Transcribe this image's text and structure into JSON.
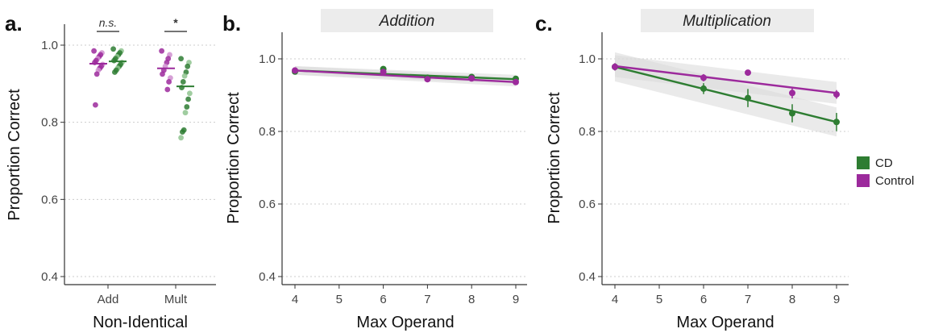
{
  "colors": {
    "cd": "#2e7d32",
    "control": "#9c2a9c",
    "cd_light": "#8fc48f",
    "control_light": "#cf8fcf",
    "band": "#d8d8d8",
    "strip_bg": "#ececec"
  },
  "chart_data": [
    {
      "type": "scatter",
      "panel_label": "a.",
      "title": "",
      "xlabel": "Non-Identical",
      "ylabel": "Proportion Correct",
      "ylim": [
        0.4,
        1.0
      ],
      "yticks": [
        "0.4",
        "0.6",
        "0.8",
        "1.0"
      ],
      "categories": [
        "Add",
        "Mult"
      ],
      "grid": true,
      "series": [
        {
          "name": "Control",
          "category": "Add",
          "mean": 0.952,
          "points": [
            0.985,
            0.98,
            0.975,
            0.97,
            0.965,
            0.96,
            0.955,
            0.95,
            0.945,
            0.94,
            0.935,
            0.925,
            0.845
          ]
        },
        {
          "name": "CD",
          "category": "Add",
          "mean": 0.958,
          "points": [
            0.99,
            0.985,
            0.98,
            0.975,
            0.97,
            0.965,
            0.96,
            0.955,
            0.95,
            0.945,
            0.94,
            0.935,
            0.93
          ]
        },
        {
          "name": "Control",
          "category": "Mult",
          "mean": 0.94,
          "points": [
            0.985,
            0.975,
            0.965,
            0.955,
            0.945,
            0.935,
            0.925,
            0.915,
            0.905,
            0.885
          ]
        },
        {
          "name": "CD",
          "category": "Mult",
          "mean": 0.893,
          "points": [
            0.965,
            0.955,
            0.945,
            0.93,
            0.92,
            0.905,
            0.89,
            0.875,
            0.86,
            0.84,
            0.825,
            0.78,
            0.775,
            0.76
          ]
        }
      ],
      "annotations": [
        {
          "text": "n.s.",
          "category": "Add",
          "style": "italic"
        },
        {
          "text": "*",
          "category": "Mult",
          "style": "bold"
        }
      ]
    },
    {
      "type": "line",
      "panel_label": "b.",
      "title": "Addition",
      "xlabel": "Max Operand",
      "ylabel": "Proportion Correct",
      "xlim": [
        4,
        9
      ],
      "ylim": [
        0.4,
        1.0
      ],
      "xticks": [
        "4",
        "5",
        "6",
        "7",
        "8",
        "9"
      ],
      "yticks": [
        "0.4",
        "0.6",
        "0.8",
        "1.0"
      ],
      "x": [
        4,
        6,
        7,
        8,
        9
      ],
      "series": [
        {
          "name": "CD",
          "values": [
            0.965,
            0.972,
            0.948,
            0.95,
            0.945
          ],
          "fit": [
            0.968,
            0.944
          ],
          "band": [
            0.012,
            0.012
          ]
        },
        {
          "name": "Control",
          "values": [
            0.968,
            0.964,
            0.944,
            0.946,
            0.936
          ],
          "fit": [
            0.968,
            0.936
          ],
          "band": [
            0.012,
            0.012
          ]
        }
      ]
    },
    {
      "type": "line",
      "panel_label": "c.",
      "title": "Multiplication",
      "xlabel": "Max Operand",
      "ylabel": "Proportion Correct",
      "xlim": [
        4,
        9
      ],
      "ylim": [
        0.4,
        1.0
      ],
      "xticks": [
        "4",
        "5",
        "6",
        "7",
        "8",
        "9"
      ],
      "yticks": [
        "0.4",
        "0.6",
        "0.8",
        "1.0"
      ],
      "x": [
        4,
        6,
        7,
        8,
        9
      ],
      "series": [
        {
          "name": "CD",
          "values": [
            0.978,
            0.918,
            0.892,
            0.85,
            0.826
          ],
          "err": [
            0.01,
            0.015,
            0.025,
            0.025,
            0.025
          ],
          "fit": [
            0.978,
            0.826
          ],
          "band": [
            0.04,
            0.04
          ]
        },
        {
          "name": "Control",
          "values": [
            0.978,
            0.948,
            0.962,
            0.906,
            0.902
          ],
          "err": [
            0.01,
            0.01,
            0.0,
            0.015,
            0.012
          ],
          "fit": [
            0.98,
            0.906
          ],
          "band": [
            0.03,
            0.03
          ]
        }
      ],
      "legend": {
        "placement": "right",
        "entries": [
          "CD",
          "Control"
        ]
      }
    }
  ]
}
